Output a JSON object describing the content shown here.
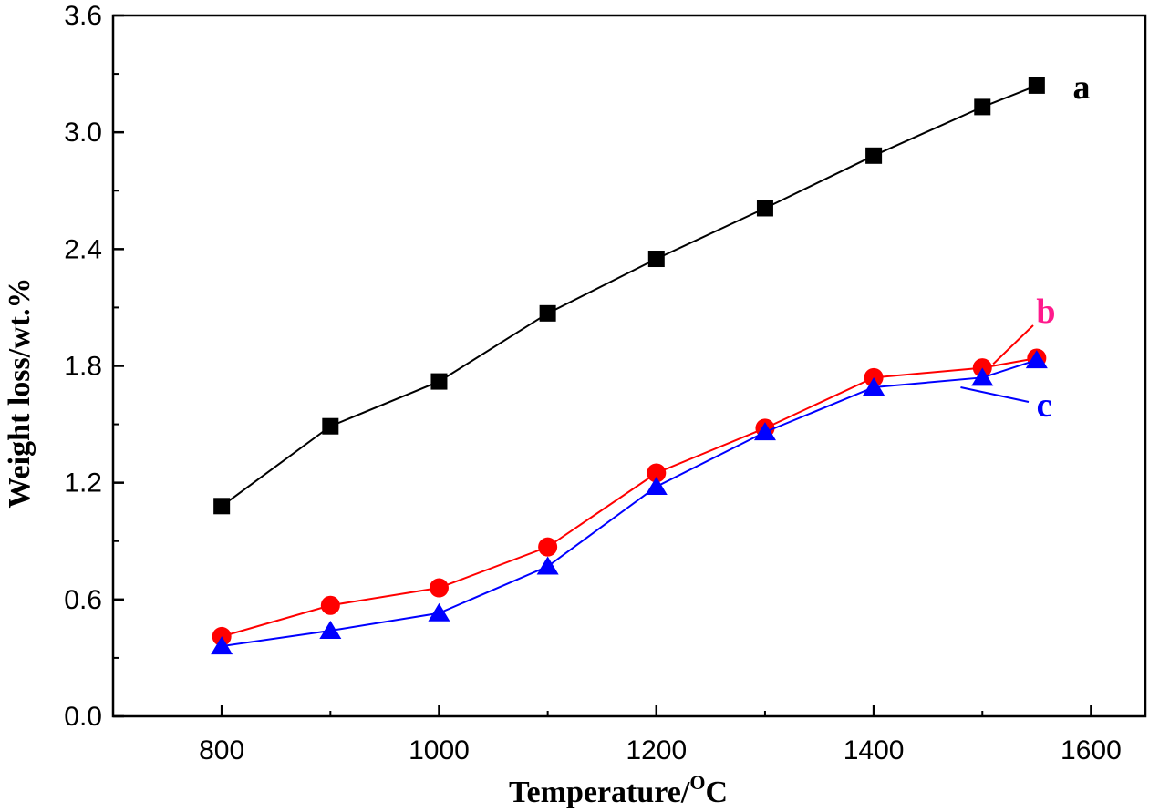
{
  "chart_data": {
    "type": "line",
    "xlabel": "Temperature/",
    "xlabel_sup": "O",
    "xlabel_unit": "C",
    "ylabel": "Weight loss/wt.%",
    "xlim": [
      700,
      1650
    ],
    "ylim": [
      0,
      3.6
    ],
    "xticks": [
      800,
      1000,
      1200,
      1400,
      1600
    ],
    "xtick_labels": [
      "800",
      "1000",
      "1200",
      "1400",
      "1600"
    ],
    "yticks": [
      0,
      0.6,
      1.2,
      1.8,
      2.4,
      3.0,
      3.6
    ],
    "ytick_labels": [
      "0.0",
      "0.6",
      "1.2",
      "1.8",
      "2.4",
      "3.0",
      "3.6"
    ],
    "grid": false,
    "x": [
      800,
      900,
      1000,
      1100,
      1200,
      1300,
      1400,
      1500,
      1550
    ],
    "series": [
      {
        "name": "a",
        "color": "#000000",
        "marker": "square",
        "values": [
          1.08,
          1.49,
          1.72,
          2.07,
          2.35,
          2.61,
          2.88,
          3.13,
          3.24
        ]
      },
      {
        "name": "b",
        "color": "#ff0000",
        "label_color": "#ff1a8c",
        "marker": "circle",
        "values": [
          0.41,
          0.57,
          0.66,
          0.87,
          1.25,
          1.48,
          1.74,
          1.79,
          1.84
        ]
      },
      {
        "name": "c",
        "color": "#0000ff",
        "marker": "triangle",
        "values": [
          0.36,
          0.44,
          0.53,
          0.77,
          1.18,
          1.46,
          1.69,
          1.74,
          1.83
        ]
      }
    ]
  }
}
